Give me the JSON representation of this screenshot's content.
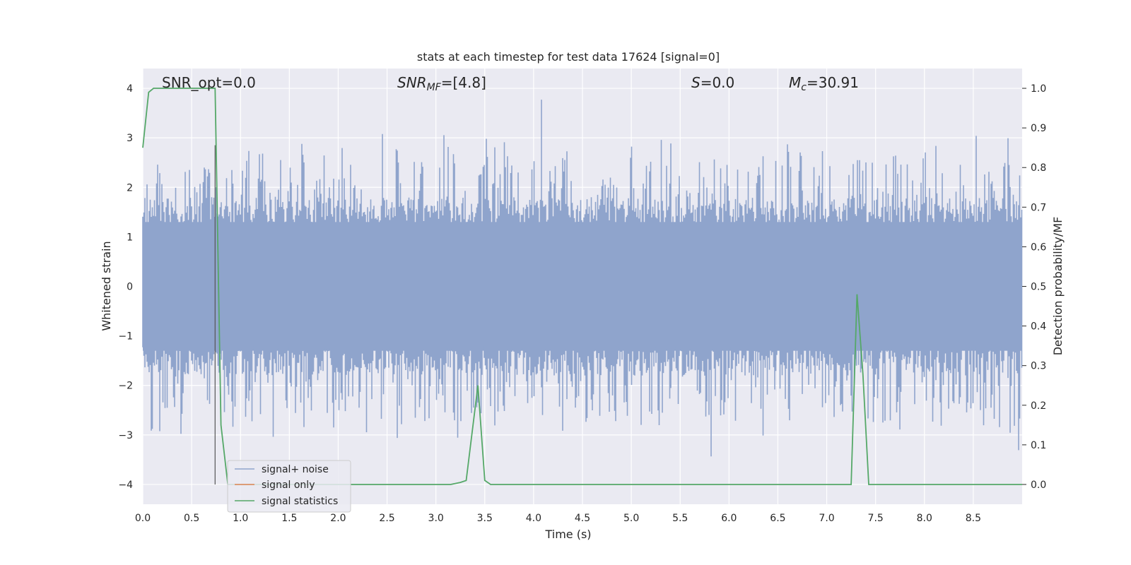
{
  "chart_data": {
    "type": "line",
    "title": "stats at each timestep for test data 17624 [signal=0]",
    "xlabel": "Time (s)",
    "ylabel_left": "Whitened strain",
    "ylabel_right": "Detection probability/MF",
    "xlim": [
      0.0,
      9.0
    ],
    "ylim_left": [
      -4.4,
      4.4
    ],
    "ylim_right": [
      -0.05,
      1.05
    ],
    "xticks": [
      "0.0",
      "0.5",
      "1.0",
      "1.5",
      "2.0",
      "2.5",
      "3.0",
      "3.5",
      "4.0",
      "4.5",
      "5.0",
      "5.5",
      "6.0",
      "6.5",
      "7.0",
      "7.5",
      "8.0",
      "8.5"
    ],
    "yticks_left": [
      "−4",
      "−3",
      "−2",
      "−1",
      "0",
      "1",
      "2",
      "3",
      "4"
    ],
    "yticks_right": [
      "0.0",
      "0.1",
      "0.2",
      "0.3",
      "0.4",
      "0.5",
      "0.6",
      "0.7",
      "0.8",
      "0.9",
      "1.0"
    ],
    "grid": true,
    "legend_position": "lower-left",
    "annotations": {
      "snr_opt": "SNR_opt=0.0",
      "snr_mf_main": "SNR",
      "snr_mf_sub": "MF",
      "snr_mf_val": "=[4.8]",
      "s_main": "S",
      "s_val": "=0.0",
      "mc_main": "M",
      "mc_sub": "c",
      "mc_val": "=30.91"
    },
    "marker_line": {
      "x": 0.74,
      "y_from": -4.0,
      "y_to": 2.85
    },
    "series": [
      {
        "name": "signal+ noise",
        "color": "#8fa4cc",
        "axis": "left",
        "description_values": "noise-like strain, mostly within ±2 with spikes to about ±3.8"
      },
      {
        "name": "signal only",
        "color": "#dd8452",
        "axis": "left",
        "values": []
      },
      {
        "name": "signal statistics",
        "color": "#55a868",
        "axis": "right",
        "x": [
          0.0,
          0.06,
          0.11,
          0.3,
          0.6,
          0.74,
          0.8,
          0.87,
          3.0,
          3.15,
          3.25,
          3.31,
          3.43,
          3.5,
          3.56,
          7.25,
          7.31,
          7.37,
          7.43,
          9.0
        ],
        "y": [
          0.85,
          0.99,
          1.0,
          1.0,
          1.0,
          1.0,
          0.15,
          0.0,
          0.0,
          0.0,
          0.005,
          0.01,
          0.25,
          0.01,
          0.0,
          0.0,
          0.48,
          0.28,
          0.0,
          0.0
        ]
      }
    ]
  },
  "colors": {
    "plot_background": "#eaeaf2",
    "grid": "#ffffff",
    "noise": "#8fa4cc",
    "signal_only": "#dd8452",
    "statistics": "#55a868"
  }
}
